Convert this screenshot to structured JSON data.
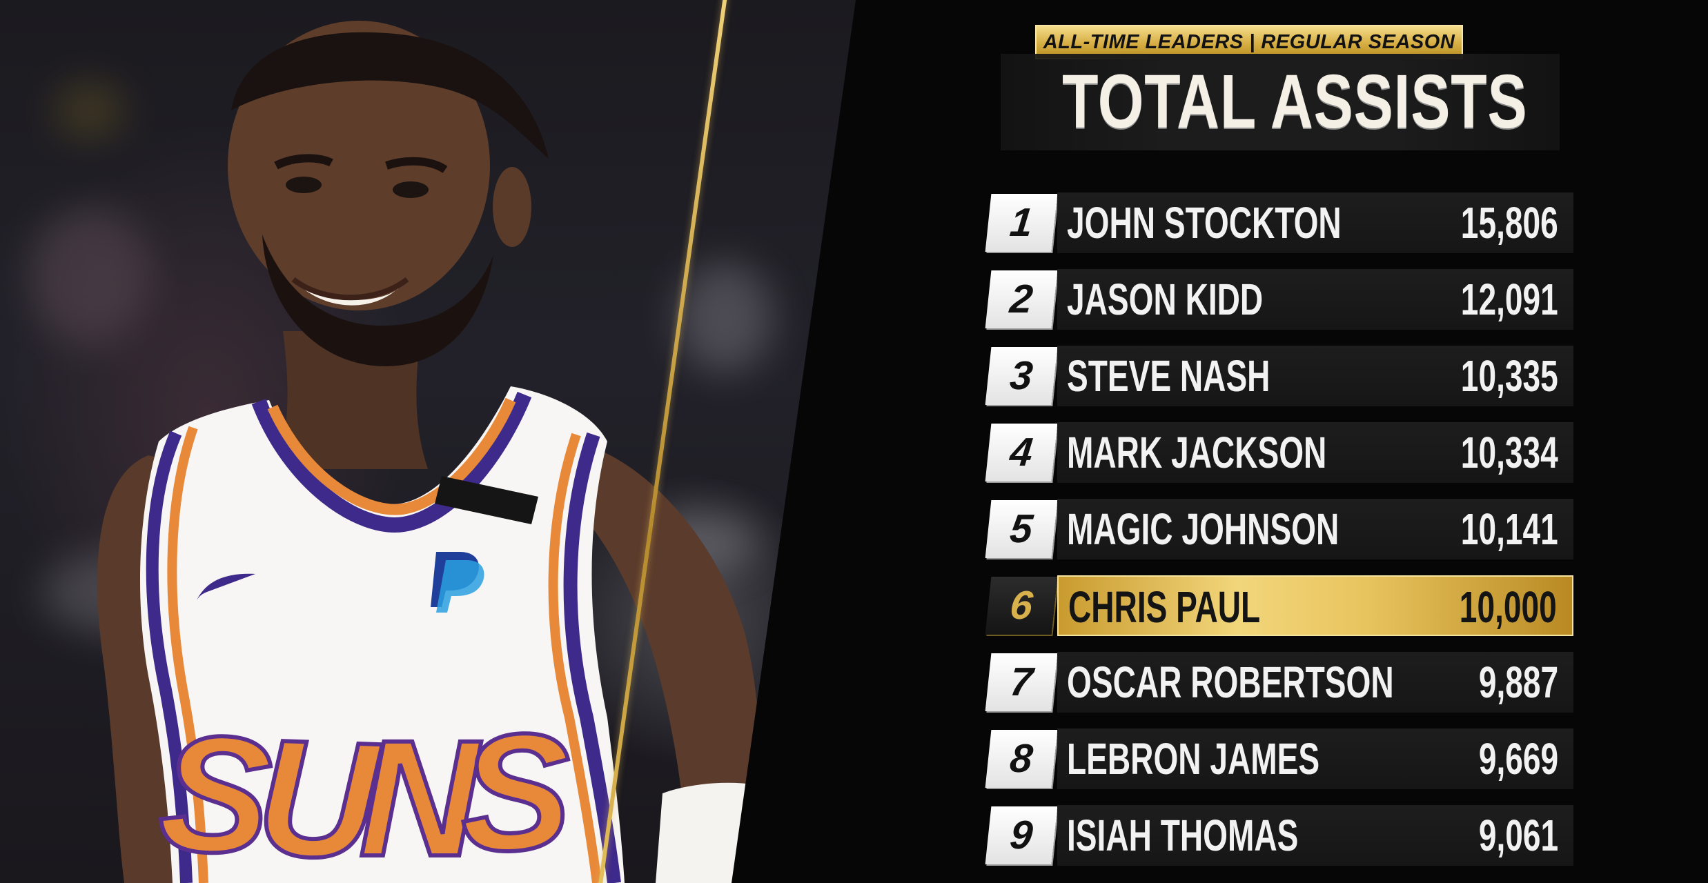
{
  "graphic": {
    "subtitle": "ALL-TIME LEADERS | REGULAR SEASON",
    "title": "TOTAL ASSISTS"
  },
  "photo": {
    "jersey_wordmark": "SUNS",
    "sponsor_label": "PayPal",
    "colors": {
      "jersey": "#f7f6f4",
      "jersey_trim_orange": "#e8893a",
      "jersey_trim_purple": "#3e2a8a",
      "skin": "#5a3a2a",
      "background": "#1d1b21"
    }
  },
  "leaders": [
    {
      "rank": "1",
      "name": "JOHN STOCKTON",
      "assists": "15,806",
      "highlight": false
    },
    {
      "rank": "2",
      "name": "JASON KIDD",
      "assists": "12,091",
      "highlight": false
    },
    {
      "rank": "3",
      "name": "STEVE NASH",
      "assists": "10,335",
      "highlight": false
    },
    {
      "rank": "4",
      "name": "MARK JACKSON",
      "assists": "10,334",
      "highlight": false
    },
    {
      "rank": "5",
      "name": "MAGIC JOHNSON",
      "assists": "10,141",
      "highlight": false
    },
    {
      "rank": "6",
      "name": "CHRIS PAUL",
      "assists": "10,000",
      "highlight": true
    },
    {
      "rank": "7",
      "name": "OSCAR ROBERTSON",
      "assists": "9,887",
      "highlight": false
    },
    {
      "rank": "8",
      "name": "LEBRON JAMES",
      "assists": "9,669",
      "highlight": false
    },
    {
      "rank": "9",
      "name": "ISIAH THOMAS",
      "assists": "9,061",
      "highlight": false
    }
  ],
  "colors": {
    "gold_accent": "#e6c35e",
    "row_dark": "#1a1a1a",
    "text_light": "#f2f2f2"
  }
}
